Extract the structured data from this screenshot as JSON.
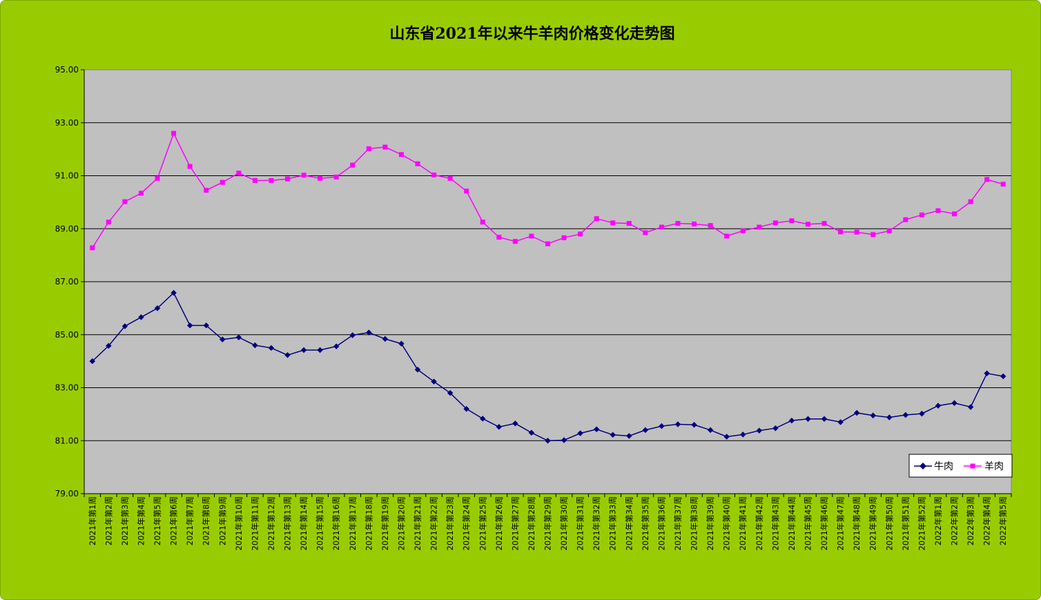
{
  "chart_data": {
    "type": "line",
    "title": "山东省2021年以来牛羊肉价格变化走势图",
    "xlabel": "",
    "ylabel": "",
    "ylim": [
      79,
      95
    ],
    "yticks": [
      "79.00",
      "81.00",
      "83.00",
      "85.00",
      "87.00",
      "89.00",
      "91.00",
      "93.00",
      "95.00"
    ],
    "grid": true,
    "legend_position": "bottom-right",
    "categories": [
      "2021年第1周",
      "2021年第2周",
      "2021年第3周",
      "2021年第4周",
      "2021年第5周",
      "2021年第6周",
      "2021年第7周",
      "2021年第8周",
      "2021年第9周",
      "2021年第10周",
      "2021年第11周",
      "2021年第12周",
      "2021年第13周",
      "2021年第14周",
      "2021年第15周",
      "2021年第16周",
      "2021年第17周",
      "2021年第18周",
      "2021年第19周",
      "2021年第20周",
      "2021年第21周",
      "2021年第22周",
      "2021年第23周",
      "2021年第24周",
      "2021年第25周",
      "2021年第26周",
      "2021年第27周",
      "2021年第28周",
      "2021年第29周",
      "2021年第30周",
      "2021年第31周",
      "2021年第32周",
      "2021年第33周",
      "2021年第34周",
      "2021年第35周",
      "2021年第36周",
      "2021年第37周",
      "2021年第38周",
      "2021年第39周",
      "2021年第40周",
      "2021年第41周",
      "2021年第42周",
      "2021年第43周",
      "2021年第44周",
      "2021年第45周",
      "2021年第46周",
      "2021年第47周",
      "2021年第48周",
      "2021年第49周",
      "2021年第50周",
      "2021年第51周",
      "2021年第52周",
      "2022年第1周",
      "2022年第2周",
      "2022年第3周",
      "2022年第4周",
      "2022年第5周"
    ],
    "series": [
      {
        "name": "牛肉",
        "color": "#000080",
        "marker": "diamond",
        "values": [
          84.0,
          84.58,
          85.32,
          85.66,
          86.0,
          86.58,
          85.35,
          85.35,
          84.82,
          84.9,
          84.6,
          84.5,
          84.23,
          84.42,
          84.42,
          84.56,
          84.98,
          85.08,
          84.84,
          84.66,
          83.68,
          83.23,
          82.8,
          82.2,
          81.83,
          81.52,
          81.65,
          81.3,
          81.0,
          81.02,
          81.28,
          81.43,
          81.22,
          81.18,
          81.4,
          81.55,
          81.62,
          81.6,
          81.4,
          81.15,
          81.23,
          81.38,
          81.47,
          81.76,
          81.82,
          81.82,
          81.7,
          82.05,
          81.95,
          81.88,
          81.97,
          82.02,
          82.32,
          82.42,
          82.27,
          83.54,
          83.43
        ]
      },
      {
        "name": "羊肉",
        "color": "#ff00ff",
        "marker": "square",
        "values": [
          88.28,
          89.25,
          90.02,
          90.34,
          90.9,
          92.6,
          91.35,
          90.45,
          90.75,
          91.1,
          90.82,
          90.82,
          90.88,
          91.02,
          90.9,
          90.95,
          91.4,
          92.02,
          92.08,
          91.8,
          91.45,
          91.03,
          90.9,
          90.42,
          89.25,
          88.68,
          88.52,
          88.72,
          88.43,
          88.66,
          88.8,
          89.38,
          89.22,
          89.2,
          88.85,
          89.06,
          89.2,
          89.18,
          89.12,
          88.72,
          88.92,
          89.06,
          89.22,
          89.3,
          89.17,
          89.2,
          88.88,
          88.87,
          88.78,
          88.92,
          89.34,
          89.52,
          89.68,
          89.56,
          90.02,
          90.86,
          90.68
        ]
      }
    ]
  },
  "colors": {
    "background": "#99cc00",
    "plot_area": "#c0c0c0",
    "grid": "#000000"
  }
}
